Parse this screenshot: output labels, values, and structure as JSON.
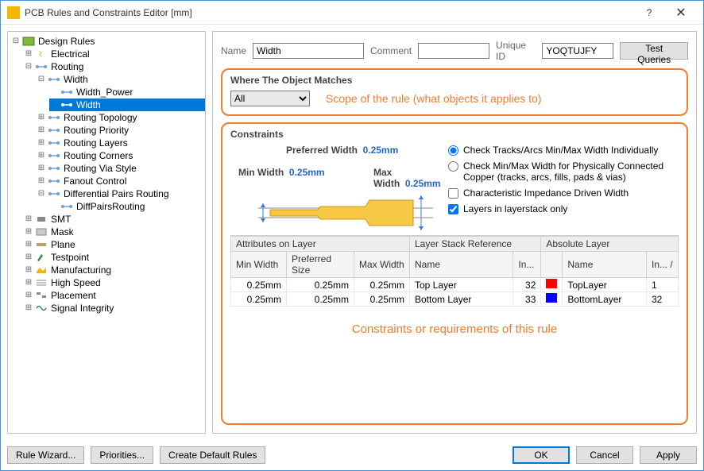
{
  "window": {
    "title": "PCB Rules and Constraints Editor [mm]"
  },
  "tree": {
    "root": "Design Rules",
    "electrical": "Electrical",
    "routing": "Routing",
    "width": "Width",
    "width_power": "Width_Power",
    "width_sel": "Width",
    "routing_topology": "Routing Topology",
    "routing_priority": "Routing Priority",
    "routing_layers": "Routing Layers",
    "routing_corners": "Routing Corners",
    "routing_via_style": "Routing Via Style",
    "fanout_control": "Fanout Control",
    "diff_pairs": "Differential Pairs Routing",
    "diff_pairs_child": "DiffPairsRouting",
    "smt": "SMT",
    "mask": "Mask",
    "plane": "Plane",
    "testpoint": "Testpoint",
    "manufacturing": "Manufacturing",
    "high_speed": "High Speed",
    "placement": "Placement",
    "signal_integrity": "Signal Integrity"
  },
  "form": {
    "name_label": "Name",
    "name_value": "Width",
    "comment_label": "Comment",
    "comment_value": "",
    "uid_label": "Unique ID",
    "uid_value": "YOQTUJFY",
    "test_btn": "Test Queries"
  },
  "scope": {
    "title": "Where The Object Matches",
    "select_value": "All",
    "annotation": "Scope of the rule (what objects it applies to)"
  },
  "constraints": {
    "title": "Constraints",
    "pref_label": "Preferred Width",
    "pref_val": "0.25mm",
    "min_label": "Min Width",
    "min_val": "0.25mm",
    "max_label": "Max Width",
    "max_val": "0.25mm",
    "shape_color": "#f7c843",
    "shape_stroke": "#8a8a8a",
    "arrow_color": "#3b7dd8",
    "radio1": "Check Tracks/Arcs Min/Max Width Individually",
    "radio2": "Check Min/Max Width for Physically Connected Copper (tracks, arcs, fills, pads & vias)",
    "chk1": "Characteristic Impedance Driven Width",
    "chk2": "Layers in layerstack only",
    "annotation": "Constraints or requirements of this rule"
  },
  "table": {
    "h_attrs": "Attributes on Layer",
    "h_stack": "Layer Stack Reference",
    "h_abs": "Absolute Layer",
    "c_min": "Min Width",
    "c_pref": "Preferred Size",
    "c_max": "Max Width",
    "c_name": "Name",
    "c_in": "In...",
    "rows": [
      {
        "min": "0.25mm",
        "pref": "0.25mm",
        "max": "0.25mm",
        "lname": "Top Layer",
        "lin": "32",
        "color": "#ff0000",
        "aname": "TopLayer",
        "ain": "1"
      },
      {
        "min": "0.25mm",
        "pref": "0.25mm",
        "max": "0.25mm",
        "lname": "Bottom Layer",
        "lin": "33",
        "color": "#0000ff",
        "aname": "BottomLayer",
        "ain": "32"
      }
    ]
  },
  "footer": {
    "wizard": "Rule Wizard...",
    "priorities": "Priorities...",
    "defaults": "Create Default Rules",
    "ok": "OK",
    "cancel": "Cancel",
    "apply": "Apply"
  },
  "colors": {
    "accent": "#ed7d31",
    "link": "#2566c4"
  }
}
